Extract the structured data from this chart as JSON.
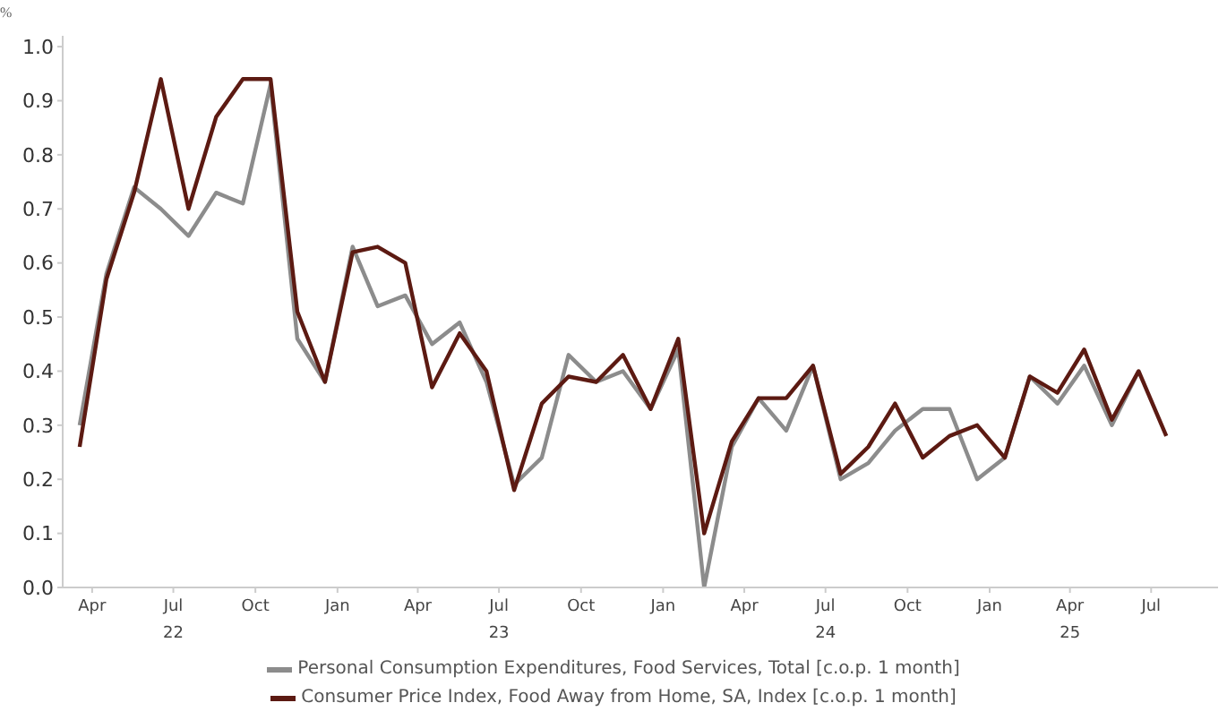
{
  "chart_data": {
    "type": "line",
    "ylabel": "%",
    "x": [
      "2022-04",
      "2022-05",
      "2022-06",
      "2022-07",
      "2022-08",
      "2022-09",
      "2022-10",
      "2022-11",
      "2022-12",
      "2023-01",
      "2023-02",
      "2023-03",
      "2023-04",
      "2023-05",
      "2023-06",
      "2023-07",
      "2023-08",
      "2023-09",
      "2023-10",
      "2023-11",
      "2023-12",
      "2024-01",
      "2024-02",
      "2024-03",
      "2024-04",
      "2024-05",
      "2024-06",
      "2024-07",
      "2024-08",
      "2024-09",
      "2024-10",
      "2024-11",
      "2024-12",
      "2025-01",
      "2025-02",
      "2025-03",
      "2025-04",
      "2025-05",
      "2025-06",
      "2025-07",
      "2025-08"
    ],
    "series": [
      {
        "name": "Personal Consumption Expenditures, Food Services, Total [c.o.p. 1 month]",
        "color": "#8c8c8c",
        "values": [
          0.3,
          0.58,
          0.74,
          0.7,
          0.65,
          0.73,
          0.71,
          0.93,
          0.46,
          0.38,
          0.63,
          0.52,
          0.54,
          0.45,
          0.49,
          0.38,
          0.19,
          0.24,
          0.43,
          0.38,
          0.4,
          0.33,
          0.44,
          0.0,
          0.26,
          0.35,
          0.29,
          0.41,
          0.2,
          0.23,
          0.29,
          0.33,
          0.33,
          0.2,
          0.24,
          0.39,
          0.34,
          0.41,
          0.3,
          0.4,
          null
        ]
      },
      {
        "name": "Consumer Price Index, Food Away from Home, SA, Index [c.o.p. 1 month]",
        "color": "#5c1a12",
        "values": [
          0.26,
          0.57,
          0.73,
          0.94,
          0.7,
          0.87,
          0.94,
          0.94,
          0.51,
          0.38,
          0.62,
          0.63,
          0.6,
          0.37,
          0.47,
          0.4,
          0.18,
          0.34,
          0.39,
          0.38,
          0.43,
          0.33,
          0.46,
          0.1,
          0.27,
          0.35,
          0.35,
          0.41,
          0.21,
          0.26,
          0.34,
          0.24,
          0.28,
          0.3,
          0.24,
          0.39,
          0.36,
          0.44,
          0.31,
          0.4,
          0.28
        ]
      }
    ],
    "xlim": [
      "2022-03-13",
      "2025-09-28"
    ],
    "xticks": [
      {
        "value": "2022-04-15",
        "label": "Apr"
      },
      {
        "value": "2022-07-15",
        "label": "Jul\n22"
      },
      {
        "value": "2022-10-15",
        "label": "Oct"
      },
      {
        "value": "2023-01-15",
        "label": "Jan"
      },
      {
        "value": "2023-04-15",
        "label": "Apr"
      },
      {
        "value": "2023-07-15",
        "label": "Jul\n23"
      },
      {
        "value": "2023-10-15",
        "label": "Oct"
      },
      {
        "value": "2024-01-15",
        "label": "Jan"
      },
      {
        "value": "2024-04-15",
        "label": "Apr"
      },
      {
        "value": "2024-07-15",
        "label": "Jul\n24"
      },
      {
        "value": "2024-10-15",
        "label": "Oct"
      },
      {
        "value": "2025-01-15",
        "label": "Jan"
      },
      {
        "value": "2025-04-15",
        "label": "Apr\n25"
      },
      {
        "value": "2025-07-15",
        "label": "Jul"
      }
    ],
    "ylim": [
      0,
      1.02
    ],
    "yticks": [
      {
        "value": 0,
        "label": "0.0"
      },
      {
        "value": 0.1,
        "label": "0.1"
      },
      {
        "value": 0.2,
        "label": "0.2"
      },
      {
        "value": 0.3,
        "label": "0.3"
      },
      {
        "value": 0.4,
        "label": "0.4"
      },
      {
        "value": 0.5,
        "label": "0.5"
      },
      {
        "value": 0.6,
        "label": "0.6"
      },
      {
        "value": 0.7,
        "label": "0.7"
      },
      {
        "value": 0.8,
        "label": "0.8"
      },
      {
        "value": 0.9,
        "label": "0.9"
      },
      {
        "value": 1.0,
        "label": "1.0"
      }
    ],
    "grid": false,
    "legend": "bottom",
    "marker": "none",
    "line_style": "solid"
  }
}
